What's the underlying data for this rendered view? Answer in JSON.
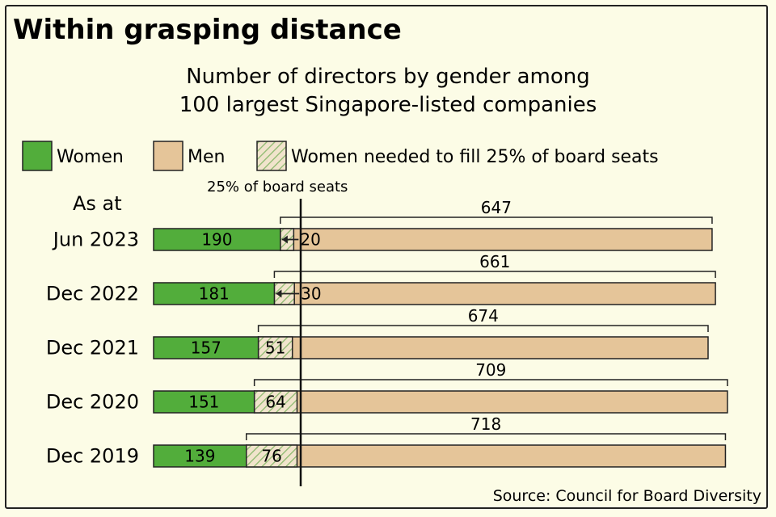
{
  "title": "Within grasping distance",
  "subtitle_line1": "Number of directors by gender among",
  "subtitle_line2": "100 largest Singapore-listed companies",
  "legend": {
    "women": "Women",
    "men": "Men",
    "needed": "Women needed to fill 25% of board seats"
  },
  "as_at_label": "As at",
  "reference_label": "25% of board seats",
  "source": "Source: Council for Board Diversity",
  "colors": {
    "women": "#52ad3b",
    "men": "#e5c599",
    "needed_hatch": "#8ab86b",
    "needed_bg": "#f1e4cc",
    "outline": "#222222"
  },
  "chart_data": {
    "type": "bar",
    "orientation": "horizontal",
    "stacked": true,
    "categories": [
      "Jun 2023",
      "Dec 2022",
      "Dec 2021",
      "Dec 2020",
      "Dec 2019"
    ],
    "series": [
      {
        "name": "Women",
        "values": [
          190,
          181,
          157,
          151,
          139
        ]
      },
      {
        "name": "Women needed to fill 25% of board seats",
        "values": [
          20,
          30,
          51,
          64,
          76
        ]
      },
      {
        "name": "Men",
        "values": [
          647,
          661,
          674,
          709,
          718
        ]
      }
    ],
    "reference_line": {
      "label": "25% of board seats"
    }
  }
}
